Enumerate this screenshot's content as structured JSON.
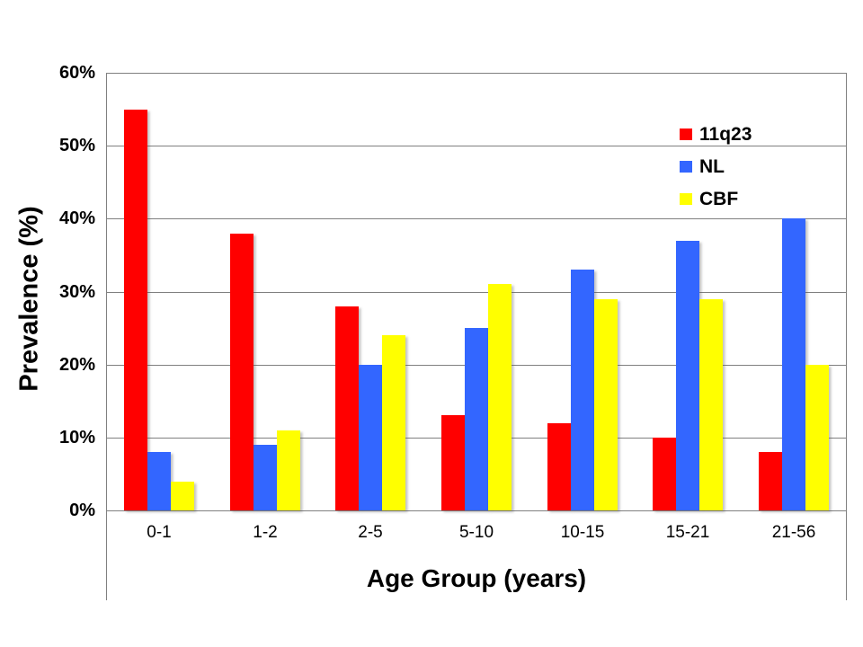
{
  "chart_data": {
    "type": "bar",
    "title": "",
    "xlabel": "Age Group (years)",
    "ylabel": "Prevalence (%)",
    "categories": [
      "0-1",
      "1-2",
      "2-5",
      "5-10",
      "10-15",
      "15-21",
      "21-56"
    ],
    "series": [
      {
        "name": "11q23",
        "color": "#ff0000",
        "values": [
          55,
          38,
          28,
          13,
          12,
          10,
          8
        ]
      },
      {
        "name": "NL",
        "color": "#3366ff",
        "values": [
          8,
          9,
          20,
          25,
          33,
          37,
          40
        ]
      },
      {
        "name": "CBF",
        "color": "#ffff00",
        "values": [
          4,
          11,
          24,
          31,
          29,
          29,
          20
        ]
      }
    ],
    "ylim": [
      0,
      60
    ],
    "ytick_step": 10,
    "ytick_labels": [
      "0%",
      "10%",
      "20%",
      "30%",
      "40%",
      "50%",
      "60%"
    ],
    "grid": true,
    "legend_position": "inside-top-right",
    "colors": {
      "gridline": "#808080",
      "axis_text": "#000000",
      "background": "#ffffff"
    }
  }
}
